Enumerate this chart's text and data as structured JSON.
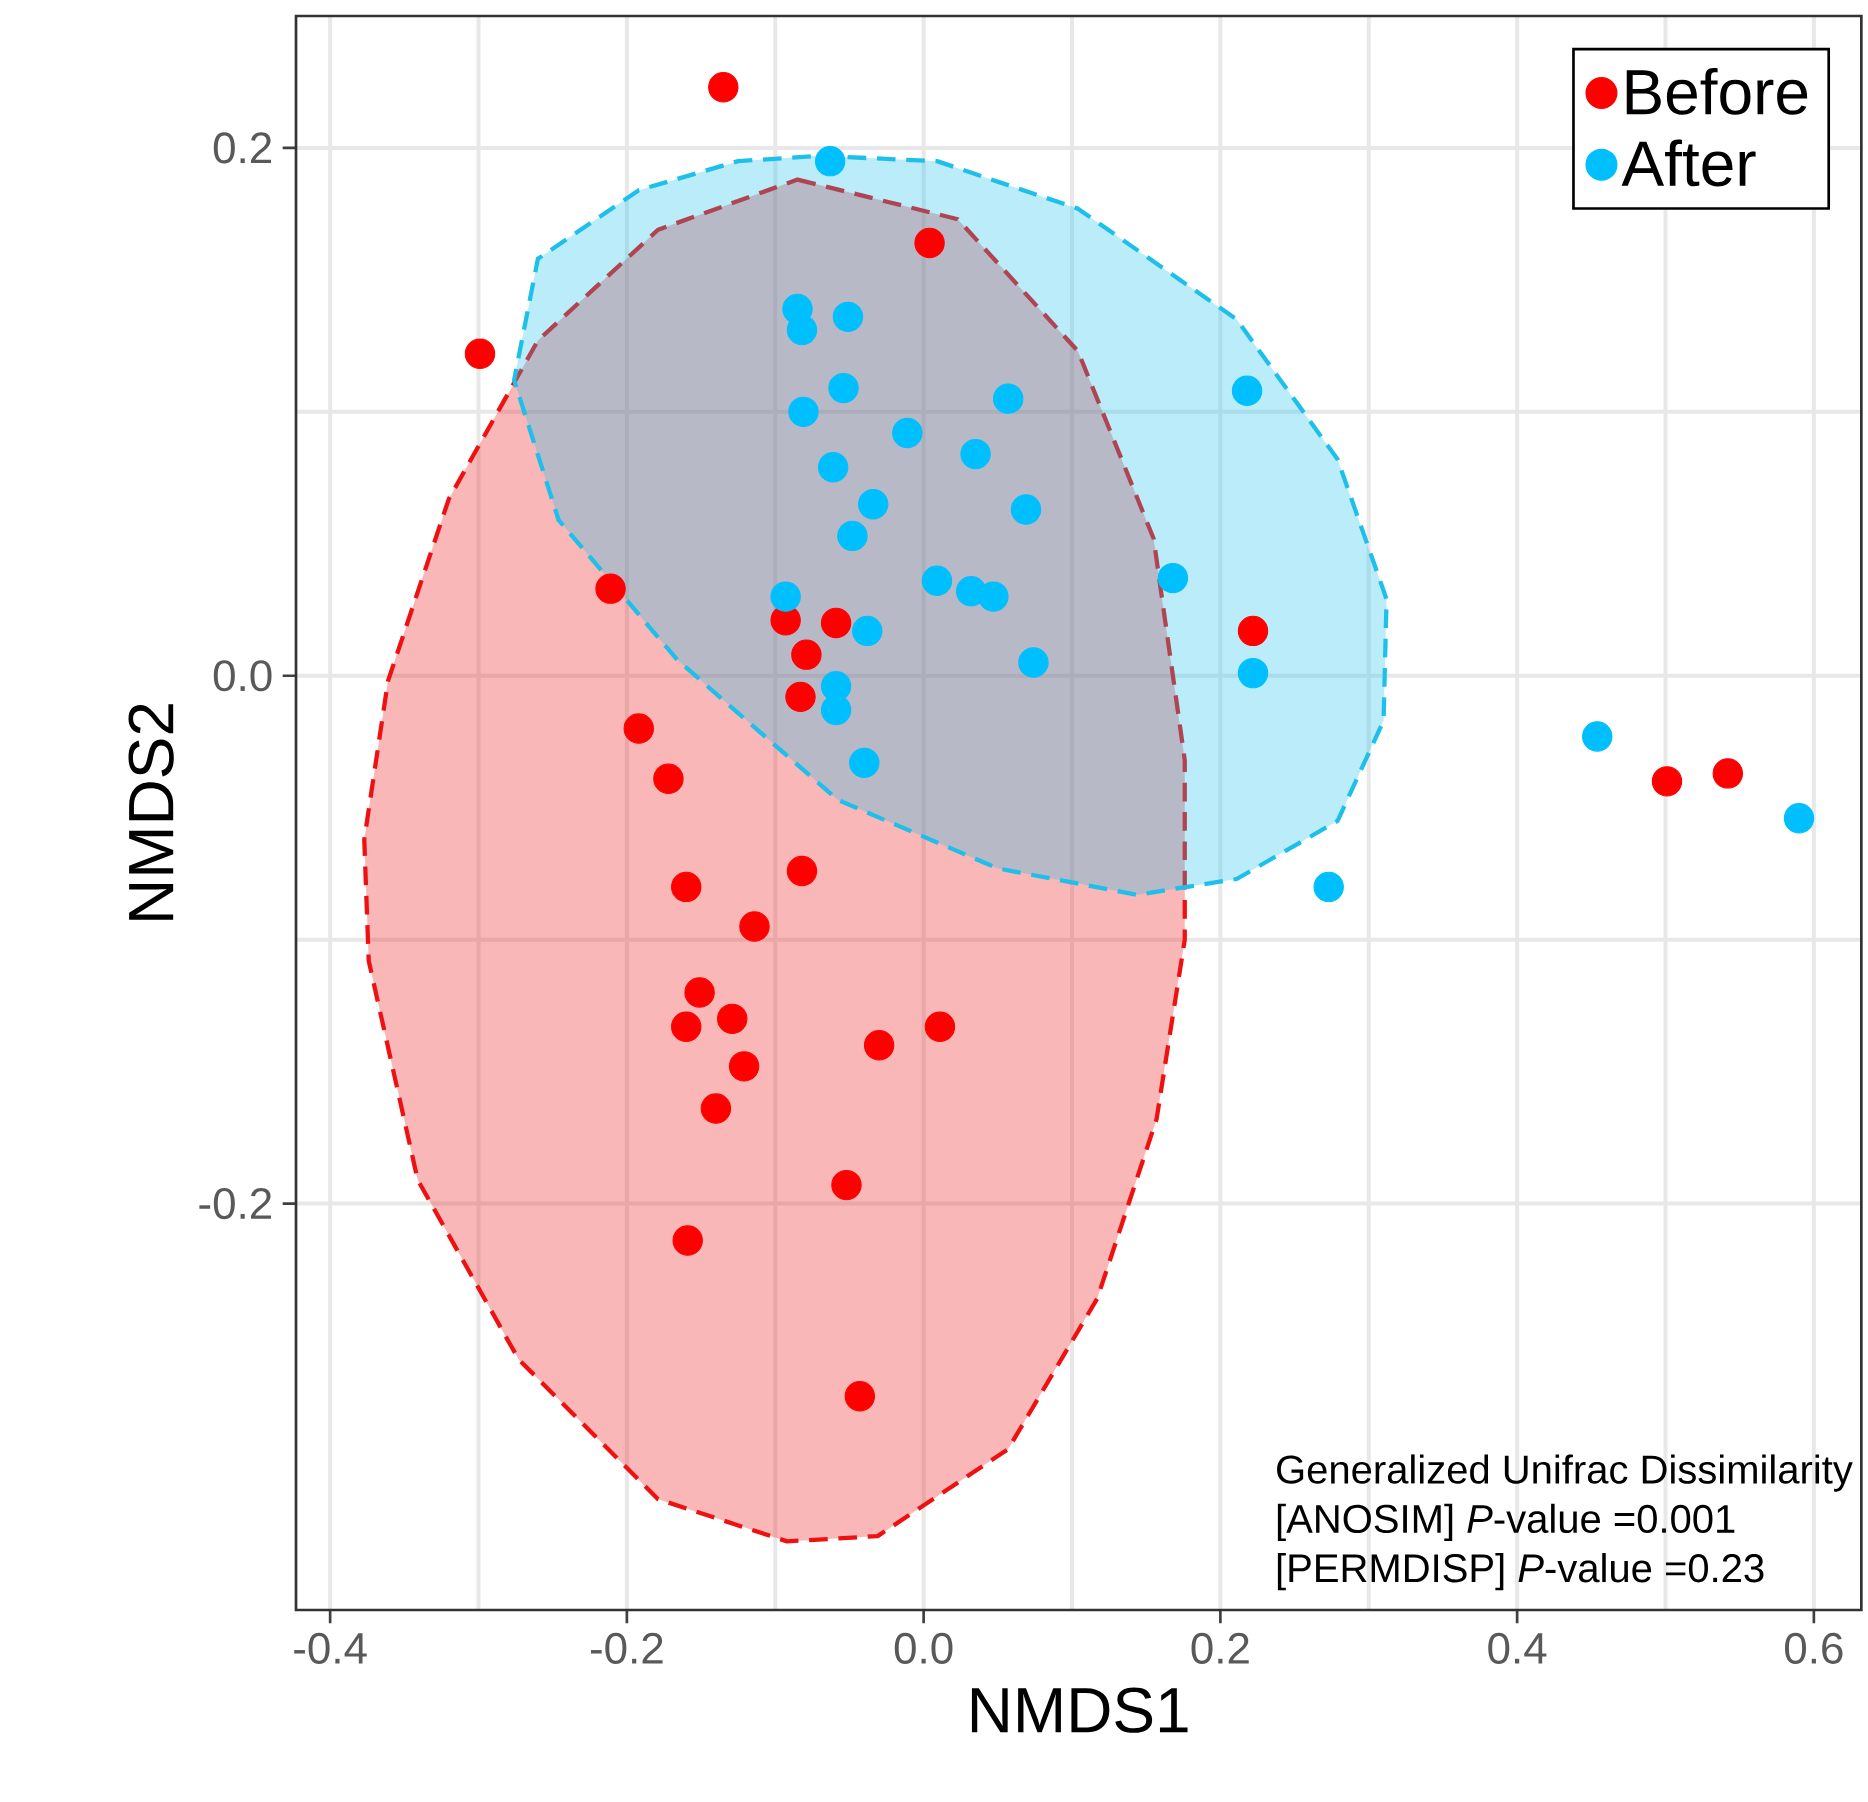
{
  "chart_data": {
    "type": "scatter",
    "xlabel": "NMDS1",
    "ylabel": "NMDS2",
    "xlim": [
      -0.423,
      0.632
    ],
    "ylim": [
      -0.354,
      0.25
    ],
    "xticks": [
      -0.4,
      -0.2,
      {
        "value": 0,
        "label": "0.0"
      },
      0.2,
      0.4,
      0.6
    ],
    "yticks": [
      -0.2,
      {
        "value": 0,
        "label": "0.0"
      },
      0.2
    ],
    "grid": true,
    "legend": "top right",
    "annotations": [
      "Generalized Unifrac Dissimilarity",
      "[ANOSIM] *P*-value =0.001",
      "[PERMDISP] *P*-value =0.23"
    ],
    "series": [
      {
        "type": "area",
        "color": "#ee1111",
        "line_style": "dashed",
        "marker": "none",
        "x": [
          -0.085,
          0.023,
          0.104,
          0.155,
          0.176,
          0.176,
          0.157,
          0.117,
          0.057,
          -0.031,
          -0.092,
          -0.179,
          -0.273,
          -0.341,
          -0.374,
          -0.377,
          -0.361,
          -0.32,
          -0.26,
          -0.179
        ],
        "values": [
          0.188,
          0.173,
          0.123,
          0.052,
          -0.032,
          -0.1,
          -0.168,
          -0.236,
          -0.293,
          -0.326,
          -0.328,
          -0.312,
          -0.259,
          -0.191,
          -0.108,
          -0.062,
          -0.002,
          0.067,
          0.127,
          0.169
        ]
      },
      {
        "type": "area",
        "color": "#1ec0ea",
        "line_style": "dashed",
        "marker": "none",
        "x": [
          -0.071,
          0.009,
          0.104,
          0.211,
          0.279,
          0.312,
          0.31,
          0.279,
          0.211,
          0.144,
          0.05,
          -0.058,
          -0.166,
          -0.246,
          -0.276,
          -0.26,
          -0.192,
          -0.125
        ],
        "values": [
          0.197,
          0.195,
          0.177,
          0.135,
          0.082,
          0.029,
          -0.017,
          -0.055,
          -0.077,
          -0.083,
          -0.073,
          -0.047,
          0.006,
          0.059,
          0.112,
          0.158,
          0.184,
          0.195
        ]
      },
      {
        "name": "Before",
        "color": "#ff0000",
        "marker": "circle",
        "x": [
          -0.135,
          -0.299,
          0.004,
          -0.211,
          -0.093,
          -0.059,
          -0.079,
          -0.083,
          -0.192,
          -0.172,
          -0.16,
          -0.082,
          -0.114,
          -0.151,
          -0.16,
          -0.129,
          -0.121,
          -0.14,
          -0.03,
          0.011,
          -0.052,
          -0.159,
          -0.043,
          0.222,
          0.501,
          0.542
        ],
        "values": [
          0.223,
          0.122,
          0.164,
          0.033,
          0.021,
          0.02,
          0.008,
          -0.008,
          -0.02,
          -0.039,
          -0.08,
          -0.074,
          -0.095,
          -0.12,
          -0.133,
          -0.13,
          -0.148,
          -0.164,
          -0.14,
          -0.133,
          -0.193,
          -0.214,
          -0.273,
          0.017,
          -0.04,
          -0.037
        ]
      },
      {
        "name": "After",
        "color": "#00bfff",
        "marker": "circle",
        "x": [
          -0.063,
          -0.085,
          -0.082,
          -0.051,
          -0.054,
          -0.081,
          -0.011,
          0.057,
          0.035,
          -0.061,
          -0.034,
          -0.048,
          0.069,
          0.009,
          0.032,
          0.047,
          -0.093,
          -0.038,
          0.074,
          -0.059,
          -0.059,
          -0.04,
          0.218,
          0.168,
          0.222,
          0.454,
          0.59,
          0.273
        ],
        "values": [
          0.195,
          0.139,
          0.131,
          0.136,
          0.109,
          0.1,
          0.092,
          0.105,
          0.084,
          0.079,
          0.065,
          0.053,
          0.063,
          0.036,
          0.032,
          0.03,
          0.03,
          0.017,
          0.005,
          -0.004,
          -0.013,
          -0.033,
          0.108,
          0.037,
          0.001,
          -0.023,
          -0.054,
          -0.08
        ]
      }
    ]
  }
}
